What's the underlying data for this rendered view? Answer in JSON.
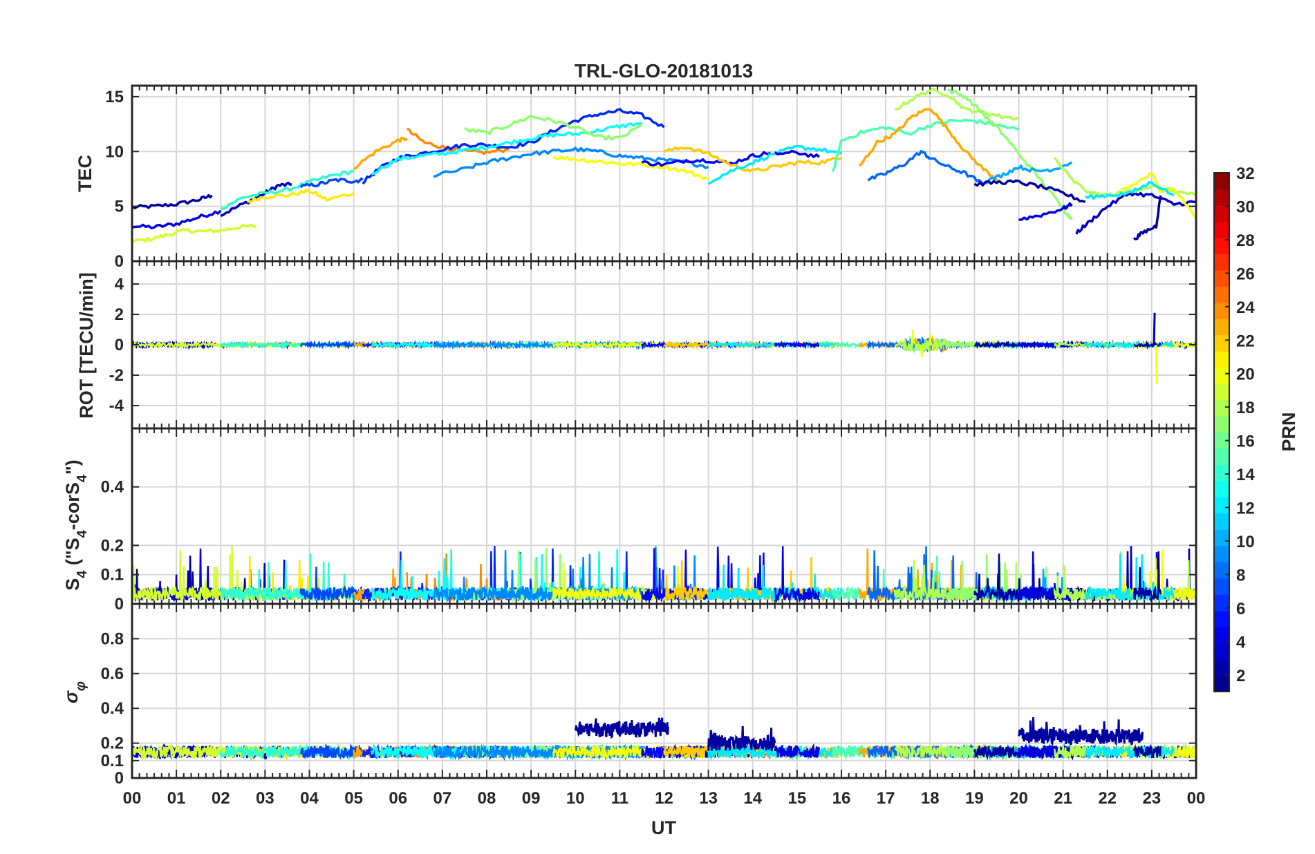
{
  "chart_data": {
    "type": "line",
    "title": "TRL-GLO-20181013",
    "xlabel": "UT",
    "x_ticks": [
      "00",
      "01",
      "02",
      "03",
      "04",
      "05",
      "06",
      "07",
      "08",
      "09",
      "10",
      "11",
      "12",
      "13",
      "14",
      "15",
      "16",
      "17",
      "18",
      "19",
      "20",
      "21",
      "22",
      "23",
      "00"
    ],
    "xlim": [
      0,
      24
    ],
    "panels": [
      {
        "id": "tec",
        "ylabel": "TEC",
        "ylim": [
          0,
          16
        ],
        "yticks": [
          "0",
          "5",
          "10",
          "15"
        ],
        "ytick_values": [
          0,
          5,
          10,
          15
        ],
        "series": [
          {
            "prn": 2,
            "x": [
              0,
              0.5,
              1,
              1.5,
              1.8
            ],
            "y": [
              4.9,
              5.0,
              5.2,
              5.6,
              6.0
            ]
          },
          {
            "prn": 4,
            "x": [
              0,
              0.5,
              1,
              1.5,
              2
            ],
            "y": [
              3.2,
              3.1,
              3.4,
              4.0,
              4.6
            ]
          },
          {
            "prn": 3,
            "x": [
              2,
              2.5,
              3,
              3.3,
              3.6
            ],
            "y": [
              4.2,
              5.2,
              6.2,
              6.9,
              7.0
            ]
          },
          {
            "prn": 19,
            "x": [
              0,
              0.4,
              0.8,
              1.2,
              1.6,
              2.0,
              2.4,
              2.8
            ],
            "y": [
              1.8,
              2.0,
              2.4,
              2.8,
              2.7,
              2.8,
              3.1,
              3.2
            ]
          },
          {
            "prn": 21,
            "x": [
              2.6,
              3.0,
              3.5,
              4.0,
              4.4,
              5.0
            ],
            "y": [
              5.4,
              5.9,
              6.0,
              6.4,
              5.6,
              6.2
            ]
          },
          {
            "prn": 14,
            "x": [
              2.0,
              2.5,
              3.0,
              3.5,
              4.0,
              4.5,
              5.0
            ],
            "y": [
              4.8,
              5.8,
              6.2,
              6.5,
              7.2,
              7.8,
              8.2
            ]
          },
          {
            "prn": 7,
            "x": [
              3.8,
              4.2,
              4.6,
              5.0,
              5.2
            ],
            "y": [
              6.8,
              7.0,
              7.4,
              7.3,
              7.4
            ]
          },
          {
            "prn": 23,
            "x": [
              5.0,
              5.5,
              6.0,
              6.2
            ],
            "y": [
              8.5,
              10.0,
              11.0,
              11.2
            ]
          },
          {
            "prn": 24,
            "x": [
              6.2,
              6.6,
              7.0,
              7.5,
              8.0,
              8.5
            ],
            "y": [
              12.0,
              10.8,
              10.4,
              10.0,
              9.9,
              10.2
            ]
          },
          {
            "prn": 6,
            "x": [
              5.2,
              5.6,
              6.0,
              6.5,
              7.0,
              7.5,
              8.0,
              8.5,
              9.0,
              9.5,
              10.0,
              10.5,
              11.0,
              11.5,
              12.0
            ],
            "y": [
              7.2,
              8.5,
              9.4,
              9.8,
              10.2,
              10.6,
              10.6,
              10.4,
              10.8,
              11.9,
              12.8,
              13.4,
              13.7,
              13.3,
              12.2
            ]
          },
          {
            "prn": 13,
            "x": [
              5.4,
              6.0,
              6.5,
              7.0,
              7.5,
              8.0,
              8.5,
              9.0,
              9.5,
              10.0,
              10.5,
              11.0,
              11.5
            ],
            "y": [
              8.0,
              9.3,
              9.6,
              9.8,
              10.1,
              10.4,
              10.8,
              11.2,
              11.5,
              11.6,
              11.9,
              12.3,
              12.6
            ]
          },
          {
            "prn": 17,
            "x": [
              7.5,
              8.0,
              8.5,
              9.0,
              9.5,
              10.0,
              10.5,
              11.0,
              11.5
            ],
            "y": [
              12.0,
              11.7,
              12.4,
              13.2,
              12.8,
              12.2,
              11.3,
              11.2,
              12.4
            ]
          },
          {
            "prn": 9,
            "x": [
              6.8,
              7.5,
              8.0,
              8.5,
              9.0,
              9.5,
              10.0,
              10.5,
              11.0,
              11.5,
              12.0,
              12.5,
              13.0
            ],
            "y": [
              7.8,
              8.4,
              9.0,
              9.4,
              9.8,
              10.0,
              10.2,
              10.0,
              9.6,
              9.4,
              9.2,
              9.0,
              8.6
            ]
          },
          {
            "prn": 20,
            "x": [
              9.5,
              10.0,
              10.5,
              11.0,
              11.5,
              12.0,
              12.5,
              13.0
            ],
            "y": [
              9.5,
              9.3,
              9.1,
              8.9,
              8.8,
              8.6,
              8.2,
              7.5
            ]
          },
          {
            "prn": 5,
            "x": [
              11.5,
              12.0,
              12.5,
              13.0,
              13.5,
              14.0,
              14.4
            ],
            "y": [
              9.0,
              8.8,
              9.2,
              9.2,
              8.9,
              9.6,
              9.9
            ]
          },
          {
            "prn": 22,
            "x": [
              12.0,
              12.5,
              13.0,
              13.5,
              14.0,
              14.5,
              15.0,
              15.5,
              16.0
            ],
            "y": [
              10.0,
              10.4,
              9.8,
              8.8,
              8.2,
              8.6,
              9.0,
              9.0,
              9.4
            ]
          },
          {
            "prn": 12,
            "x": [
              13.0,
              13.5,
              14.0,
              14.5,
              15.0,
              15.5,
              16.0
            ],
            "y": [
              7.2,
              8.2,
              9.0,
              9.8,
              10.4,
              10.2,
              9.8
            ]
          },
          {
            "prn": 4,
            "x": [
              14.5,
              15.0,
              15.5
            ],
            "y": [
              9.8,
              9.9,
              9.5
            ]
          },
          {
            "prn": 15,
            "x": [
              15.8,
              16.0,
              16.5,
              17.0,
              17.5,
              18.0,
              18.5,
              19.0,
              19.5,
              20.0
            ],
            "y": [
              8.0,
              11.0,
              11.8,
              12.2,
              11.6,
              12.4,
              12.8,
              12.8,
              12.4,
              12.0
            ]
          },
          {
            "prn": 23,
            "x": [
              16.4,
              16.8,
              17.2,
              17.6,
              18.0,
              18.4,
              18.8,
              19.2,
              19.6
            ],
            "y": [
              8.6,
              10.8,
              11.6,
              13.2,
              14.0,
              12.0,
              10.0,
              8.4,
              7.2
            ]
          },
          {
            "prn": 8,
            "x": [
              16.6,
              17.0,
              17.4,
              17.8,
              18.0,
              18.4,
              18.8,
              19.2
            ],
            "y": [
              7.4,
              8.0,
              8.8,
              10.0,
              9.4,
              8.6,
              8.0,
              7.0
            ]
          },
          {
            "prn": 18,
            "x": [
              17.2,
              17.6,
              18.0,
              18.4,
              18.8,
              19.2,
              19.6,
              20.0
            ],
            "y": [
              13.8,
              14.8,
              15.6,
              15.2,
              13.8,
              13.6,
              13.2,
              13.0
            ]
          },
          {
            "prn": 17,
            "x": [
              18.4,
              18.8,
              19.2,
              19.6,
              20.0,
              20.5,
              21.0,
              21.2
            ],
            "y": [
              15.6,
              15.0,
              13.4,
              11.8,
              9.8,
              7.4,
              4.8,
              3.8
            ]
          },
          {
            "prn": 10,
            "x": [
              19.2,
              19.6,
              20.0,
              20.4,
              20.8,
              21.2
            ],
            "y": [
              7.2,
              7.8,
              8.6,
              8.2,
              8.4,
              9.0
            ]
          },
          {
            "prn": 2,
            "x": [
              19.0,
              19.5,
              20.0,
              20.5,
              21.0,
              21.5
            ],
            "y": [
              7.0,
              7.2,
              7.2,
              6.8,
              6.2,
              5.4
            ]
          },
          {
            "prn": 4,
            "x": [
              20.0,
              20.5,
              21.0,
              21.2
            ],
            "y": [
              3.8,
              4.2,
              4.8,
              5.2
            ]
          },
          {
            "prn": 3,
            "x": [
              21.3,
              21.6,
              22.0,
              22.5,
              23.0,
              23.5,
              24.0
            ],
            "y": [
              2.6,
              3.6,
              5.0,
              6.2,
              6.0,
              5.2,
              5.4
            ]
          },
          {
            "prn": 18,
            "x": [
              20.8,
              21.2,
              21.6,
              22.0,
              22.5,
              23.0,
              23.5,
              24.0
            ],
            "y": [
              9.4,
              7.4,
              6.2,
              6.0,
              6.4,
              6.8,
              6.4,
              6.0
            ]
          },
          {
            "prn": 20,
            "x": [
              22.3,
              22.6,
              23.0,
              23.2,
              23.5,
              24.0
            ],
            "y": [
              6.4,
              7.0,
              8.0,
              6.4,
              6.6,
              4.0
            ]
          },
          {
            "prn": 12,
            "x": [
              21.5,
              22.0,
              22.5,
              23.0,
              23.5
            ],
            "y": [
              5.8,
              6.0,
              6.2,
              7.2,
              6.0
            ]
          },
          {
            "prn": 2,
            "x": [
              22.6,
              22.8,
              23.1,
              23.2
            ],
            "y": [
              2.0,
              2.6,
              3.2,
              6.0
            ]
          }
        ]
      },
      {
        "id": "rot",
        "ylabel": "ROT [TECU/min]",
        "ylim": [
          -5.5,
          5.5
        ],
        "yticks": [
          "-4",
          "-2",
          "0",
          "2",
          "4"
        ],
        "ytick_values": [
          -4,
          -2,
          0,
          2,
          4
        ],
        "noise_amplitude": 0.12,
        "spikes": [
          {
            "x": 17.6,
            "y": 1.0
          },
          {
            "x": 17.8,
            "y": -0.8
          },
          {
            "x": 18.0,
            "y": 0.7
          },
          {
            "x": 23.05,
            "y": 2.1
          },
          {
            "x": 23.1,
            "y": -2.6
          }
        ]
      },
      {
        "id": "s4",
        "ylabel": "S4 (\"S4-corS4\")",
        "ylim": [
          0,
          0.6
        ],
        "yticks": [
          "0",
          "0.1",
          "0.2",
          "0.4"
        ],
        "ytick_values": [
          0,
          0.1,
          0.2,
          0.4
        ],
        "base_level": 0.04,
        "peak_level": 0.2
      },
      {
        "id": "sigma",
        "ylabel": "σφ",
        "ylim": [
          0,
          1.0
        ],
        "yticks": [
          "0",
          "0.1",
          "0.2",
          "0.4",
          "0.6",
          "0.8"
        ],
        "ytick_values": [
          0,
          0.1,
          0.2,
          0.4,
          0.6,
          0.8
        ],
        "base_level": 0.15,
        "high_intervals": [
          {
            "from": 10.0,
            "to": 12.1,
            "level": 0.28
          },
          {
            "from": 13.0,
            "to": 14.5,
            "level": 0.2
          },
          {
            "from": 20.0,
            "to": 22.8,
            "level": 0.24
          }
        ]
      }
    ],
    "colorbar": {
      "label": "PRN",
      "range": [
        1,
        32
      ],
      "ticks": [
        "2",
        "4",
        "6",
        "8",
        "10",
        "12",
        "14",
        "16",
        "18",
        "20",
        "22",
        "24",
        "26",
        "28",
        "30",
        "32"
      ],
      "tick_values": [
        2,
        4,
        6,
        8,
        10,
        12,
        14,
        16,
        18,
        20,
        22,
        24,
        26,
        28,
        30,
        32
      ],
      "colormap": "jet"
    }
  }
}
